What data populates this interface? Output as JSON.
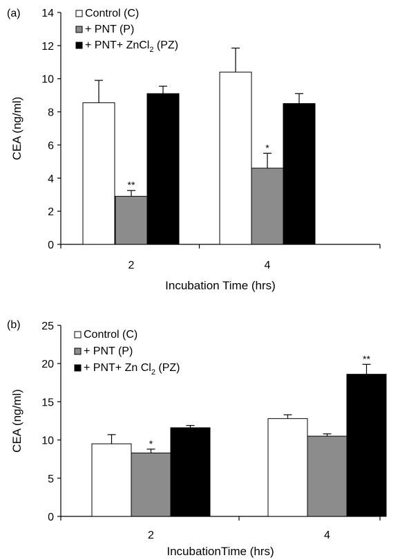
{
  "chart_data": [
    {
      "type": "bar",
      "panel_label": "(a)",
      "categories": [
        "2",
        "4"
      ],
      "xlabel": "Incubation Time (hrs)",
      "ylabel": "CEA (ng/ml)",
      "ylim": [
        0,
        14
      ],
      "yticks": [
        0,
        2,
        4,
        6,
        8,
        10,
        12,
        14
      ],
      "legend_position": "top-left",
      "series": [
        {
          "name": "Control (C)",
          "legend_text": "Control (C)",
          "color": "#ffffff",
          "values": [
            8.55,
            10.4
          ],
          "errors": [
            1.35,
            1.45
          ],
          "annotations": [
            "",
            ""
          ]
        },
        {
          "name": "+ PNT (P)",
          "legend_text": "+ PNT (P)",
          "color": "#8c8c8c",
          "values": [
            2.9,
            4.6
          ],
          "errors": [
            0.35,
            0.9
          ],
          "annotations": [
            "**",
            "*"
          ]
        },
        {
          "name": "+ PNT+ ZnCl2 (PZ)",
          "legend_text": "+ PNT+ ZnCl",
          "legend_sub": "2",
          "legend_tail": " (PZ)",
          "color": "#000000",
          "values": [
            9.1,
            8.5
          ],
          "errors": [
            0.45,
            0.6
          ],
          "annotations": [
            "",
            ""
          ]
        }
      ]
    },
    {
      "type": "bar",
      "panel_label": "(b)",
      "categories": [
        "2",
        "4"
      ],
      "xlabel": "IncubationTime (hrs)",
      "ylabel": "CEA (ng/ml)",
      "ylim": [
        0,
        25
      ],
      "yticks": [
        0,
        5,
        10,
        15,
        20,
        25
      ],
      "legend_position": "top-left",
      "series": [
        {
          "name": "Control (C)",
          "legend_text": "Control (C)",
          "color": "#ffffff",
          "values": [
            9.5,
            12.8
          ],
          "errors": [
            1.2,
            0.5
          ],
          "annotations": [
            "",
            ""
          ]
        },
        {
          "name": "+ PNT (P)",
          "legend_text": "+ PNT (P)",
          "color": "#8c8c8c",
          "values": [
            8.3,
            10.5
          ],
          "errors": [
            0.5,
            0.3
          ],
          "annotations": [
            "*",
            ""
          ]
        },
        {
          "name": "+ PNT+ Zn Cl2 (PZ)",
          "legend_text": "+ PNT+ Zn Cl",
          "legend_sub": "2",
          "legend_tail": " (PZ)",
          "color": "#000000",
          "values": [
            11.6,
            18.6
          ],
          "errors": [
            0.3,
            1.3
          ],
          "annotations": [
            "",
            "**"
          ]
        }
      ]
    }
  ]
}
